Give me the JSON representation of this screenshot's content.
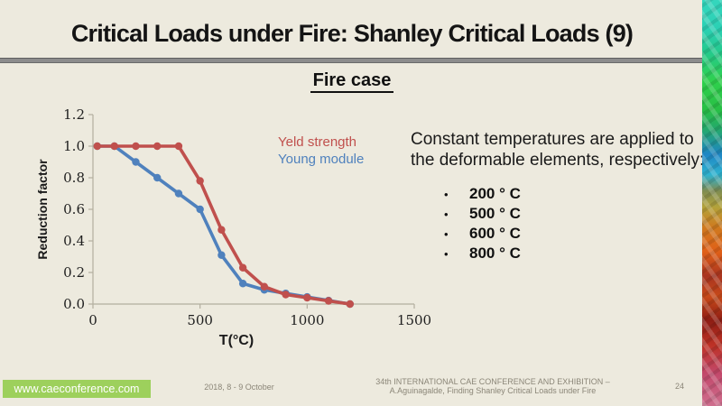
{
  "slide": {
    "title": "Critical Loads under Fire: Shanley Critical Loads (9)",
    "subtitle": "Fire case"
  },
  "chart_data": {
    "type": "line",
    "title": "",
    "xlabel": "T(°C)",
    "ylabel": "Reduction factor",
    "xlim": [
      0,
      1500
    ],
    "ylim": [
      0.0,
      1.2
    ],
    "x_ticks": [
      0,
      500,
      1000,
      1500
    ],
    "y_ticks": [
      0.0,
      0.2,
      0.4,
      0.6,
      0.8,
      1.0,
      1.2
    ],
    "grid": false,
    "legend_position": "inside-right",
    "x": [
      20,
      100,
      200,
      300,
      400,
      500,
      600,
      700,
      800,
      900,
      1000,
      1100,
      1200
    ],
    "series": [
      {
        "name": "Yeld strength",
        "color": "#c0504d",
        "values": [
          1.0,
          1.0,
          1.0,
          1.0,
          1.0,
          0.78,
          0.47,
          0.23,
          0.11,
          0.06,
          0.04,
          0.02,
          0.0
        ]
      },
      {
        "name": "Young module",
        "color": "#4f81bd",
        "values": [
          1.0,
          1.0,
          0.9,
          0.8,
          0.7,
          0.6,
          0.31,
          0.13,
          0.09,
          0.0675,
          0.045,
          0.0225,
          0.0
        ]
      }
    ]
  },
  "note": {
    "text": "Constant temperatures are applied to the deformable elements, respectively:",
    "bullets": [
      "200 ° C",
      "500 ° C",
      "600 ° C",
      "800 ° C"
    ]
  },
  "footer": {
    "website": "www.caeconference.com",
    "date": "2018, 8 -  9 October",
    "conference_line1": "34th INTERNATIONAL CAE CONFERENCE AND EXHIBITION –",
    "conference_line2": "A.Aguinagalde, Finding Shanley Critical Loads under Fire",
    "page_number": "24"
  },
  "colors": {
    "background": "#edeade",
    "yield_red": "#c0504d",
    "young_blue": "#4f81bd",
    "footer_green": "#9dd05c",
    "footer_text_gray": "#8b8678"
  }
}
